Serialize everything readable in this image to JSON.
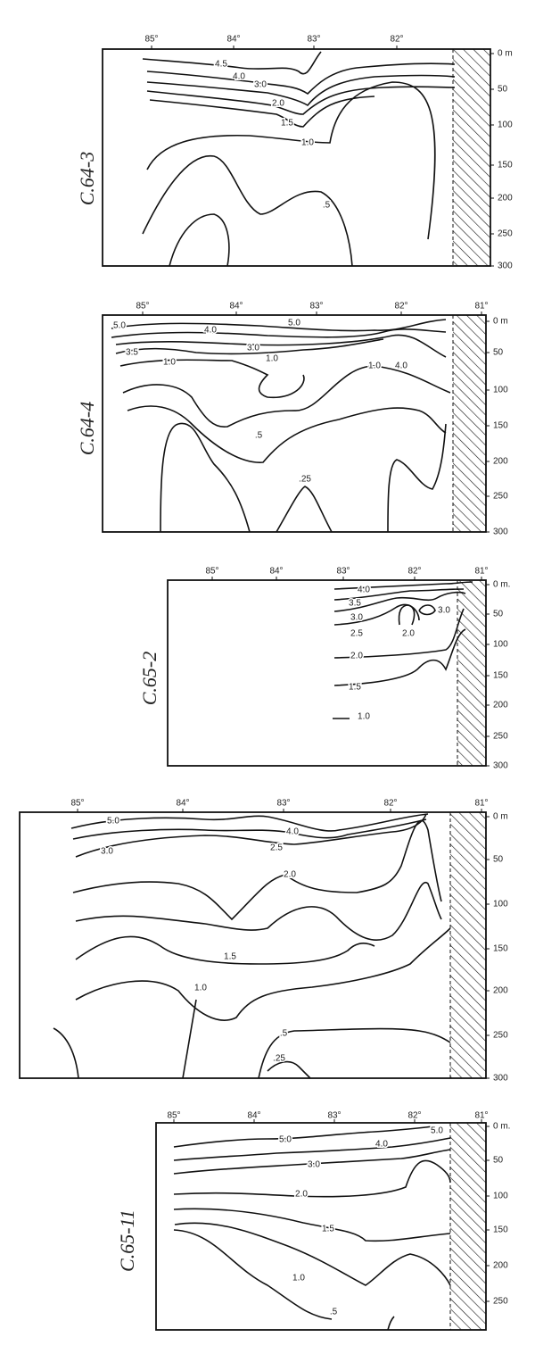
{
  "panels": [
    {
      "label": "C.64-3",
      "lon_labels": [
        "85°",
        "84°",
        "83°",
        "82°"
      ],
      "depth_labels": [
        "0 m",
        "50",
        "100",
        "150",
        "200",
        "250",
        "300"
      ],
      "contour_labels": [
        "4.5",
        "4.0",
        "3.0",
        "2.0",
        "1.5",
        "1.0",
        ".5"
      ]
    },
    {
      "label": "C.64-4",
      "lon_labels": [
        "85°",
        "84°",
        "83°",
        "82°",
        "81°"
      ],
      "depth_labels": [
        "0 m",
        "50",
        "100",
        "150",
        "200",
        "250",
        "300"
      ],
      "contour_labels": [
        "5.0",
        "4.0",
        "5.0",
        "3.0",
        "3.5",
        "1.0",
        "1.0",
        "1.0",
        "4.0",
        ".5",
        ".25"
      ]
    },
    {
      "label": "C.65-2",
      "lon_labels": [
        "85°",
        "84°",
        "83°",
        "82°",
        "81°"
      ],
      "depth_labels": [
        "0 m.",
        "50",
        "100",
        "150",
        "200",
        "250",
        "300"
      ],
      "contour_labels": [
        "4.0",
        "3.5",
        "3.0",
        "2.5",
        "2.0",
        "3.0",
        "2.0",
        "1.5",
        "1.0"
      ]
    },
    {
      "label": "",
      "lon_labels": [
        "85°",
        "84°",
        "83°",
        "82°",
        "81°"
      ],
      "depth_labels": [
        "0 m",
        "50",
        "100",
        "150",
        "200",
        "250",
        "300"
      ],
      "contour_labels": [
        "5.0",
        "3.0",
        "4.0",
        "2.5",
        "2.0",
        "1.5",
        "1.0",
        ".5",
        ".25"
      ]
    },
    {
      "label": "C.65-11",
      "lon_labels": [
        "85°",
        "84°",
        "83°",
        "82°",
        "81°"
      ],
      "depth_labels": [
        "0 m.",
        "50",
        "100",
        "150",
        "200",
        "250"
      ],
      "contour_labels": [
        "5.0",
        "4.0",
        "3.0",
        "2.0",
        "1.5",
        "1.0",
        ".5",
        "5.0"
      ]
    }
  ]
}
